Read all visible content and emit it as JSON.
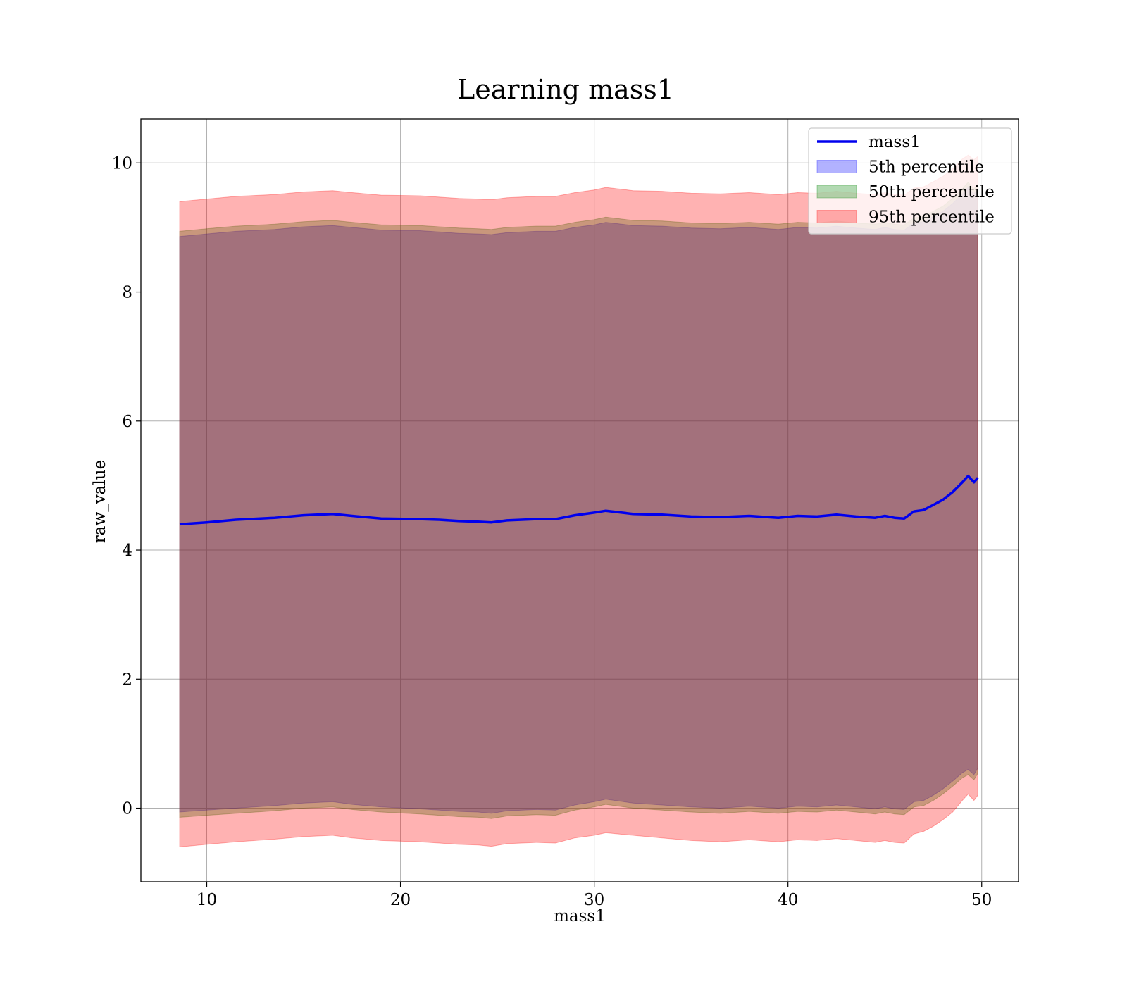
{
  "chart_data": {
    "type": "area",
    "title": "Learning mass1",
    "xlabel": "mass1",
    "ylabel": "raw_value",
    "xlim": [
      6.6,
      51.9
    ],
    "ylim": [
      -1.14,
      10.68
    ],
    "xticks": [
      10,
      20,
      30,
      40,
      50
    ],
    "yticks": [
      0,
      2,
      4,
      6,
      8,
      10
    ],
    "grid": true,
    "legend_position": "top-right",
    "x": [
      8.6,
      10,
      11.5,
      13.5,
      15,
      16.5,
      17.5,
      19,
      21,
      22,
      23,
      24,
      24.7,
      25.5,
      27,
      28,
      29,
      30,
      30.6,
      32,
      33.5,
      35,
      36.5,
      38,
      39.5,
      40.5,
      41.5,
      42.5,
      43.5,
      44.5,
      45,
      45.5,
      46,
      46.5,
      47,
      47.5,
      48,
      48.5,
      49,
      49.3,
      49.6,
      49.8
    ],
    "series": [
      {
        "name": "mass1",
        "kind": "line",
        "color": "#0000ee",
        "values": [
          4.4,
          4.43,
          4.47,
          4.5,
          4.54,
          4.56,
          4.53,
          4.49,
          4.48,
          4.47,
          4.45,
          4.44,
          4.43,
          4.46,
          4.48,
          4.48,
          4.54,
          4.58,
          4.61,
          4.56,
          4.55,
          4.52,
          4.51,
          4.53,
          4.5,
          4.53,
          4.52,
          4.55,
          4.52,
          4.5,
          4.53,
          4.5,
          4.49,
          4.6,
          4.62,
          4.7,
          4.78,
          4.9,
          5.05,
          5.15,
          5.05,
          5.12
        ]
      },
      {
        "name": "5th percentile",
        "kind": "band",
        "color": "#0000ff",
        "lower": [
          -0.06,
          -0.03,
          0.0,
          0.04,
          0.08,
          0.1,
          0.06,
          0.02,
          -0.01,
          -0.03,
          -0.05,
          -0.06,
          -0.08,
          -0.04,
          -0.02,
          -0.03,
          0.05,
          0.1,
          0.14,
          0.08,
          0.05,
          0.02,
          0.0,
          0.03,
          0.0,
          0.03,
          0.02,
          0.05,
          0.02,
          -0.01,
          0.02,
          -0.01,
          -0.02,
          0.1,
          0.12,
          0.2,
          0.3,
          0.42,
          0.55,
          0.6,
          0.52,
          0.62
        ],
        "upper": [
          8.86,
          8.9,
          8.94,
          8.97,
          9.01,
          9.03,
          9.0,
          8.96,
          8.95,
          8.93,
          8.91,
          8.9,
          8.89,
          8.92,
          8.94,
          8.94,
          9.0,
          9.04,
          9.08,
          9.03,
          9.02,
          8.99,
          8.98,
          9.0,
          8.97,
          9.0,
          8.99,
          9.02,
          8.99,
          8.97,
          9.0,
          8.97,
          8.96,
          9.07,
          9.09,
          9.17,
          9.25,
          9.37,
          9.52,
          9.62,
          9.52,
          9.59
        ]
      },
      {
        "name": "50th percentile",
        "kind": "band",
        "color": "#008000",
        "lower": [
          -0.14,
          -0.11,
          -0.08,
          -0.04,
          0.0,
          0.02,
          -0.02,
          -0.06,
          -0.09,
          -0.11,
          -0.13,
          -0.14,
          -0.16,
          -0.12,
          -0.1,
          -0.11,
          -0.03,
          0.02,
          0.06,
          0.0,
          -0.03,
          -0.06,
          -0.08,
          -0.05,
          -0.08,
          -0.05,
          -0.06,
          -0.03,
          -0.06,
          -0.09,
          -0.06,
          -0.09,
          -0.1,
          0.02,
          0.04,
          0.12,
          0.22,
          0.34,
          0.47,
          0.52,
          0.44,
          0.54
        ],
        "upper": [
          8.94,
          8.98,
          9.02,
          9.05,
          9.09,
          9.11,
          9.08,
          9.04,
          9.03,
          9.01,
          8.99,
          8.98,
          8.97,
          9.0,
          9.02,
          9.02,
          9.08,
          9.12,
          9.16,
          9.11,
          9.1,
          9.07,
          9.06,
          9.08,
          9.05,
          9.08,
          9.07,
          9.1,
          9.07,
          9.05,
          9.08,
          9.05,
          9.04,
          9.15,
          9.17,
          9.25,
          9.33,
          9.45,
          9.6,
          9.7,
          9.6,
          9.67
        ]
      },
      {
        "name": "95th percentile",
        "kind": "band",
        "color": "#ff0000",
        "lower": [
          -0.6,
          -0.56,
          -0.52,
          -0.48,
          -0.44,
          -0.42,
          -0.46,
          -0.5,
          -0.52,
          -0.54,
          -0.56,
          -0.57,
          -0.59,
          -0.55,
          -0.53,
          -0.54,
          -0.46,
          -0.42,
          -0.38,
          -0.42,
          -0.46,
          -0.5,
          -0.52,
          -0.49,
          -0.52,
          -0.49,
          -0.5,
          -0.47,
          -0.5,
          -0.53,
          -0.5,
          -0.53,
          -0.54,
          -0.4,
          -0.36,
          -0.28,
          -0.18,
          -0.06,
          0.12,
          0.22,
          0.12,
          0.2
        ],
        "upper": [
          9.4,
          9.44,
          9.48,
          9.51,
          9.55,
          9.57,
          9.54,
          9.5,
          9.49,
          9.47,
          9.45,
          9.44,
          9.43,
          9.46,
          9.48,
          9.48,
          9.54,
          9.58,
          9.62,
          9.57,
          9.56,
          9.53,
          9.52,
          9.54,
          9.51,
          9.54,
          9.53,
          9.56,
          9.53,
          9.51,
          9.54,
          9.51,
          9.5,
          9.61,
          9.63,
          9.71,
          9.79,
          9.91,
          10.06,
          10.12,
          10.05,
          10.1
        ]
      }
    ]
  }
}
